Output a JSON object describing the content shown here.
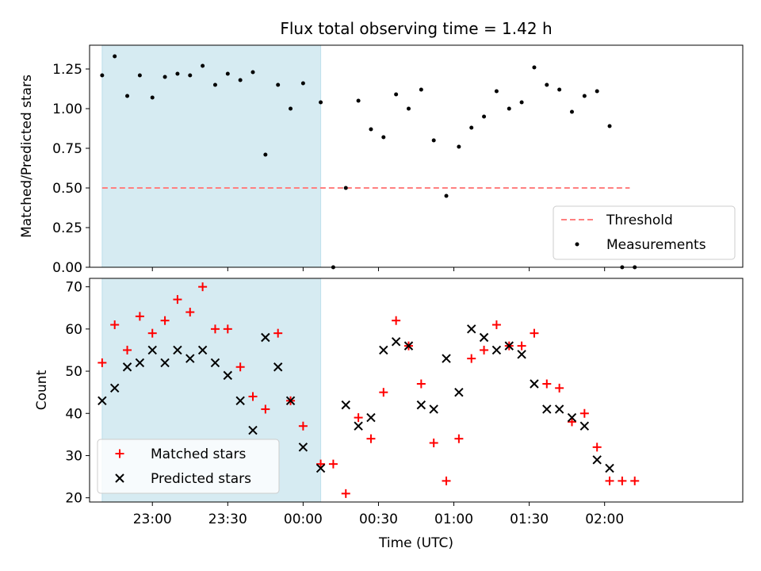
{
  "figure": {
    "title": "Flux total observing time = 1.42 h"
  },
  "chart_data": [
    {
      "type": "scatter",
      "panel": "top",
      "title": "Flux total observing time = 1.42 h",
      "xlabel": "",
      "ylabel": "Matched/Predicted stars",
      "xlim": [
        "22:35",
        "02:55"
      ],
      "ylim": [
        0,
        1.4
      ],
      "yticks": [
        0.0,
        0.25,
        0.5,
        0.75,
        1.0,
        1.25
      ],
      "ytick_labels": [
        "0.00",
        "0.25",
        "0.50",
        "0.75",
        "1.00",
        "1.25"
      ],
      "shaded_region": {
        "x_start": "22:40",
        "x_end": "00:07",
        "color": "#add8e6"
      },
      "legend_position": "lower right",
      "series": [
        {
          "name": "Threshold",
          "style": "dashed-line",
          "color": "#ff8080",
          "x": [
            "22:40",
            "02:10"
          ],
          "y": [
            0.5,
            0.5
          ]
        },
        {
          "name": "Measurements",
          "style": "dot",
          "color": "#000000",
          "x": [
            "22:40",
            "22:45",
            "22:50",
            "22:55",
            "23:00",
            "23:05",
            "23:10",
            "23:15",
            "23:20",
            "23:25",
            "23:30",
            "23:35",
            "23:40",
            "23:45",
            "23:50",
            "23:55",
            "00:00",
            "00:07",
            "00:12",
            "00:17",
            "00:22",
            "00:27",
            "00:32",
            "00:37",
            "00:42",
            "00:47",
            "00:52",
            "00:57",
            "01:02",
            "01:07",
            "01:12",
            "01:17",
            "01:22",
            "01:27",
            "01:32",
            "01:37",
            "01:42",
            "01:47",
            "01:52",
            "01:57",
            "02:02",
            "02:07",
            "02:12"
          ],
          "y": [
            1.21,
            1.33,
            1.08,
            1.21,
            1.07,
            1.2,
            1.22,
            1.21,
            1.27,
            1.15,
            1.22,
            1.18,
            1.23,
            0.71,
            1.15,
            1.0,
            1.16,
            1.04,
            0.0,
            0.5,
            1.05,
            0.87,
            0.82,
            1.09,
            1.0,
            1.12,
            0.8,
            0.45,
            0.76,
            0.88,
            0.95,
            1.11,
            1.0,
            1.04,
            1.26,
            1.15,
            1.12,
            0.98,
            1.08,
            1.11,
            0.89,
            0.0,
            0.0
          ]
        }
      ]
    },
    {
      "type": "scatter",
      "panel": "bottom",
      "xlabel": "Time (UTC)",
      "ylabel": "Count",
      "xlim": [
        "22:35",
        "02:55"
      ],
      "ylim": [
        19,
        72
      ],
      "xticks": [
        "23:00",
        "23:30",
        "00:00",
        "00:30",
        "01:00",
        "01:30",
        "02:00"
      ],
      "yticks": [
        20,
        30,
        40,
        50,
        60,
        70
      ],
      "ytick_labels": [
        "20",
        "30",
        "40",
        "50",
        "60",
        "70"
      ],
      "shaded_region": {
        "x_start": "22:40",
        "x_end": "00:07",
        "color": "#add8e6"
      },
      "legend_position": "lower left",
      "series": [
        {
          "name": "Matched stars",
          "marker": "+",
          "color": "#ff0000",
          "x": [
            "22:40",
            "22:45",
            "22:50",
            "22:55",
            "23:00",
            "23:05",
            "23:10",
            "23:15",
            "23:20",
            "23:25",
            "23:30",
            "23:35",
            "23:40",
            "23:45",
            "23:50",
            "23:55",
            "00:00",
            "00:07",
            "00:12",
            "00:17",
            "00:22",
            "00:27",
            "00:32",
            "00:37",
            "00:42",
            "00:47",
            "00:52",
            "00:57",
            "01:02",
            "01:07",
            "01:12",
            "01:17",
            "01:22",
            "01:27",
            "01:32",
            "01:37",
            "01:42",
            "01:47",
            "01:52",
            "01:57",
            "02:02",
            "02:07",
            "02:12"
          ],
          "y": [
            52,
            61,
            55,
            63,
            59,
            62,
            67,
            64,
            70,
            60,
            60,
            51,
            44,
            41,
            59,
            43,
            37,
            28,
            28,
            21,
            39,
            34,
            45,
            62,
            56,
            47,
            33,
            24,
            34,
            53,
            55,
            61,
            56,
            56,
            59,
            47,
            46,
            38,
            40,
            32,
            24,
            24,
            24
          ]
        },
        {
          "name": "Predicted stars",
          "marker": "x",
          "color": "#000000",
          "x": [
            "22:40",
            "22:45",
            "22:50",
            "22:55",
            "23:00",
            "23:05",
            "23:10",
            "23:15",
            "23:20",
            "23:25",
            "23:30",
            "23:35",
            "23:40",
            "23:45",
            "23:50",
            "23:55",
            "00:00",
            "00:07",
            "00:17",
            "00:22",
            "00:27",
            "00:32",
            "00:37",
            "00:42",
            "00:47",
            "00:52",
            "00:57",
            "01:02",
            "01:07",
            "01:12",
            "01:17",
            "01:22",
            "01:27",
            "01:32",
            "01:37",
            "01:42",
            "01:47",
            "01:52",
            "01:57",
            "02:02"
          ],
          "y": [
            43,
            46,
            51,
            52,
            55,
            52,
            55,
            53,
            55,
            52,
            49,
            43,
            36,
            58,
            51,
            43,
            32,
            27,
            42,
            37,
            39,
            55,
            57,
            56,
            42,
            41,
            53,
            45,
            60,
            58,
            55,
            56,
            54,
            47,
            41,
            41,
            39,
            37,
            29,
            27
          ]
        }
      ]
    }
  ]
}
